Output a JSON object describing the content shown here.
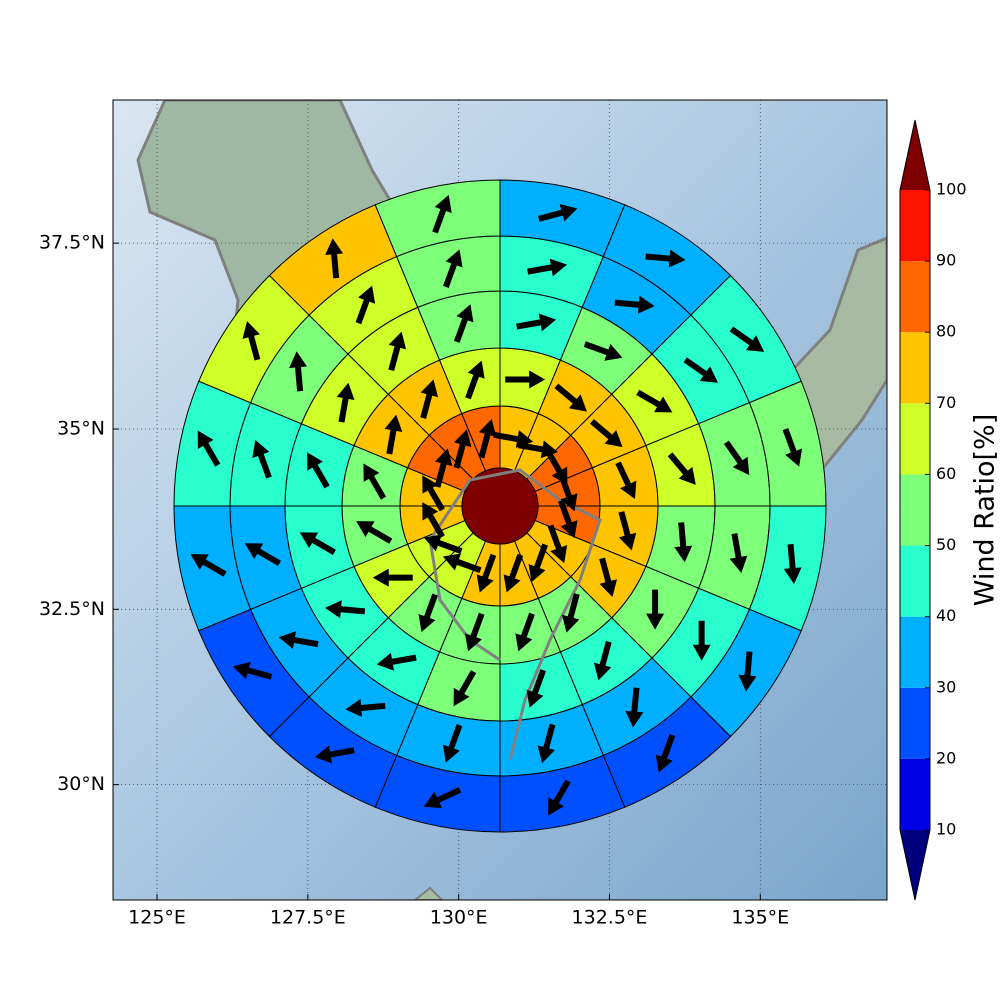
{
  "chart_data": {
    "type": "polar_grid_map",
    "projection": "mercator",
    "xlim": [
      124.27,
      137.1
    ],
    "ylim": [
      28.32,
      39.37
    ],
    "xticks": [
      {
        "value": 125,
        "label": "125°E"
      },
      {
        "value": 127.5,
        "label": "127.5°E"
      },
      {
        "value": 130,
        "label": "130°E"
      },
      {
        "value": 132.5,
        "label": "132.5°E"
      },
      {
        "value": 135,
        "label": "135°E"
      }
    ],
    "yticks": [
      {
        "value": 30,
        "label": "30°N"
      },
      {
        "value": 32.5,
        "label": "32.5°N"
      },
      {
        "value": 35,
        "label": "35°N"
      },
      {
        "value": 37.5,
        "label": "37.5°N"
      }
    ],
    "grid": true,
    "center_value": 105,
    "rings": [
      {
        "values": [
          75,
          75,
          85,
          85,
          85,
          75,
          75,
          75,
          75,
          65,
          65,
          75,
          75,
          85,
          85,
          85
        ],
        "directions": [
          100,
          100,
          150,
          160,
          160,
          160,
          200,
          200,
          200,
          290,
          290,
          330,
          330,
          15,
          15,
          15
        ]
      },
      {
        "values": [
          65,
          75,
          75,
          75,
          75,
          75,
          55,
          55,
          55,
          55,
          65,
          55,
          55,
          75,
          75,
          65
        ],
        "directions": [
          90,
          130,
          130,
          155,
          165,
          165,
          195,
          200,
          200,
          200,
          270,
          300,
          330,
          10,
          15,
          20
        ]
      },
      {
        "values": [
          45,
          55,
          65,
          65,
          55,
          55,
          45,
          45,
          55,
          45,
          45,
          45,
          45,
          65,
          65,
          55
        ],
        "directions": [
          80,
          110,
          120,
          140,
          175,
          180,
          195,
          200,
          210,
          260,
          275,
          300,
          330,
          10,
          15,
          20
        ]
      },
      {
        "values": [
          45,
          35,
          45,
          55,
          55,
          45,
          35,
          35,
          35,
          35,
          35,
          35,
          45,
          55,
          65,
          55
        ],
        "directions": [
          80,
          95,
          125,
          145,
          170,
          180,
          185,
          195,
          200,
          265,
          280,
          300,
          340,
          355,
          20,
          20
        ]
      },
      {
        "values": [
          35,
          35,
          45,
          55,
          45,
          35,
          25,
          25,
          25,
          25,
          25,
          35,
          45,
          65,
          75,
          55
        ],
        "directions": [
          75,
          95,
          125,
          160,
          175,
          185,
          200,
          210,
          245,
          260,
          285,
          300,
          330,
          345,
          355,
          20
        ]
      }
    ],
    "colorbar": {
      "label": "Wind Ratio[%]",
      "levels": [
        10,
        20,
        30,
        40,
        50,
        60,
        70,
        80,
        90,
        100
      ],
      "colors": [
        "#00007f",
        "#0000e6",
        "#0050ff",
        "#00b0ff",
        "#29ffce",
        "#7dff7a",
        "#ceff29",
        "#ffc400",
        "#ff6800",
        "#ff1300",
        "#7f0000"
      ],
      "ticks": [
        10,
        20,
        30,
        40,
        50,
        60,
        70,
        80,
        90,
        100
      ]
    }
  }
}
